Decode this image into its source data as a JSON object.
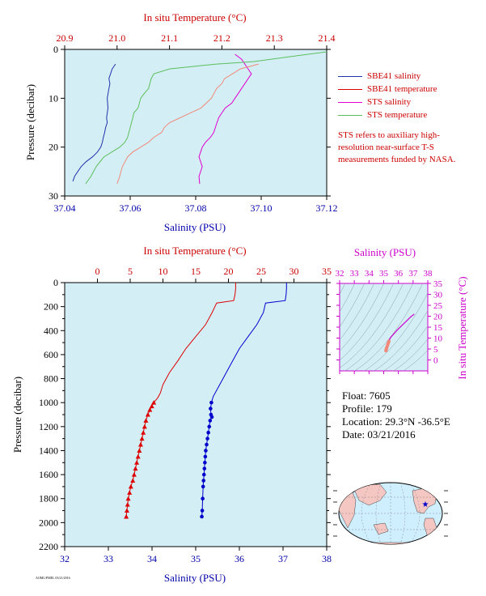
{
  "chart_data": [
    {
      "type": "line",
      "title": "",
      "top_axis": {
        "label": "In situ Temperature (°C)",
        "range": [
          20.9,
          21.4
        ],
        "ticks": [
          "20.9",
          "21.0",
          "21.1",
          "21.2",
          "21.3",
          "21.4"
        ],
        "color": "#cc0000"
      },
      "x_axis": {
        "label": "Salinity (PSU)",
        "range": [
          37.04,
          37.12
        ],
        "ticks": [
          "37.04",
          "37.06",
          "37.08",
          "37.10",
          "37.12"
        ],
        "color": "#0000aa"
      },
      "y_axis": {
        "label": "Pressure (decibar)",
        "range": [
          0,
          30
        ],
        "inverted": true,
        "ticks": [
          "0",
          "10",
          "20",
          "30"
        ]
      },
      "background": "#d4eef6",
      "series": [
        {
          "name": "SBE41 salinity",
          "axis": "salinity",
          "color": "#2233aa",
          "x": [
            37.0555,
            37.0545,
            37.054,
            37.0535,
            37.0538,
            37.0535,
            37.053,
            37.0532,
            37.0528,
            37.053,
            37.0525,
            37.0522,
            37.0518,
            37.0515,
            37.051,
            37.05,
            37.0485,
            37.0465,
            37.045,
            37.044,
            37.043,
            37.0425
          ],
          "y": [
            3,
            4,
            5,
            6,
            7,
            8,
            10,
            12,
            14,
            15,
            16,
            17,
            18,
            19,
            20,
            21,
            22,
            23,
            24,
            25,
            26,
            27
          ]
        },
        {
          "name": "SBE41 temperature",
          "axis": "temperature",
          "color": "#dd0000",
          "x": [],
          "y": []
        },
        {
          "name": "STS salinity",
          "axis": "salinity",
          "color": "#e000d0",
          "x": [
            37.092,
            37.094,
            37.095,
            37.096,
            37.097,
            37.096,
            37.095,
            37.094,
            37.093,
            37.092,
            37.091,
            37.089,
            37.088,
            37.087,
            37.0865,
            37.086,
            37.0855,
            37.0845,
            37.083,
            37.082,
            37.0815,
            37.081,
            37.082,
            37.081,
            37.0812
          ],
          "y": [
            1,
            2,
            3,
            4,
            5,
            6,
            7,
            8,
            9,
            10,
            11,
            12,
            13,
            14,
            15,
            16,
            17,
            18,
            19,
            20,
            21,
            22,
            24,
            26,
            27.5
          ]
        },
        {
          "name": "STS temperature",
          "axis": "temperature",
          "color": "#5bbf5b",
          "x": [
            21.4,
            21.33,
            21.26,
            21.19,
            21.1,
            21.07,
            21.065,
            21.06,
            21.052,
            21.045,
            21.04,
            21.032,
            21.03,
            21.025,
            21.02,
            21.015,
            21.005,
            20.99,
            20.975,
            20.96,
            20.95,
            20.94
          ],
          "y": [
            0.5,
            1.5,
            2.5,
            3,
            4,
            5,
            6,
            8,
            9,
            10,
            12,
            13,
            14,
            16,
            18,
            19,
            20,
            21,
            22,
            24,
            26,
            27.5
          ]
        },
        {
          "name": "",
          "axis": "temperature",
          "color": "#f08a7a",
          "x": [
            21.27,
            21.235,
            21.22,
            21.205,
            21.2,
            21.19,
            21.18,
            21.17,
            21.16,
            21.14,
            21.12,
            21.1,
            21.09,
            21.085,
            21.07,
            21.06,
            21.045,
            21.03,
            21.02,
            21.01,
            21.005,
            21.0
          ],
          "y": [
            3,
            4,
            5,
            6,
            7,
            8,
            10,
            11,
            12,
            13,
            14,
            15,
            16,
            17,
            18,
            19,
            20,
            21,
            22,
            24,
            26,
            27.5
          ]
        }
      ],
      "legend": {
        "position": "right",
        "items": [
          {
            "label": "SBE41 salinity",
            "color": "#2233aa"
          },
          {
            "label": "SBE41 temperature",
            "color": "#dd0000"
          },
          {
            "label": "STS salinity",
            "color": "#e000d0"
          },
          {
            "label": "STS temperature",
            "color": "#5bbf5b"
          }
        ],
        "note": "STS refers to auxiliary high-resolution near-surface T-S measurements funded by NASA."
      }
    },
    {
      "type": "line",
      "title": "",
      "top_axis": {
        "label": "In situ Temperature (°C)",
        "range": [
          -5,
          35
        ],
        "ticks": [
          "0",
          "5",
          "10",
          "15",
          "20",
          "25",
          "30",
          "35"
        ],
        "color": "#cc0000"
      },
      "x_axis": {
        "label": "Salinity (PSU)",
        "range": [
          32,
          38
        ],
        "ticks": [
          "32",
          "33",
          "34",
          "35",
          "36",
          "37",
          "38"
        ],
        "color": "#0000aa"
      },
      "y_axis": {
        "label": "Pressure (decibar)",
        "range": [
          0,
          2200
        ],
        "inverted": true,
        "ticks": [
          "0",
          "200",
          "400",
          "600",
          "800",
          "1000",
          "1200",
          "1400",
          "1600",
          "1800",
          "2000",
          "2200"
        ]
      },
      "background": "#d4eef6",
      "series": [
        {
          "name": "Temperature",
          "axis": "temperature",
          "color": "#dd0000",
          "x": [
            21.1,
            21.1,
            21.0,
            20.8,
            18.2,
            17.5,
            16.5,
            15.0,
            13.5,
            12.3,
            11.0,
            10.0,
            9.6,
            9.2,
            8.6,
            8.3,
            8.0,
            7.7,
            7.4,
            7.2,
            7.0,
            6.8,
            6.6,
            6.4,
            6.2,
            6.0,
            5.8,
            5.6,
            5.4,
            5.1,
            4.9,
            4.7,
            4.6,
            4.5,
            4.4,
            4.3,
            4.3,
            4.2
          ],
          "y": [
            0,
            50,
            100,
            150,
            170,
            250,
            350,
            450,
            550,
            650,
            750,
            850,
            920,
            960,
            1000,
            1030,
            1060,
            1100,
            1150,
            1200,
            1250,
            1300,
            1350,
            1400,
            1450,
            1500,
            1550,
            1600,
            1650,
            1700,
            1750,
            1800,
            1850,
            1900,
            1950,
            1950,
            1950,
            1950
          ],
          "markers": "triangle",
          "marker_from_pressure": 1000
        },
        {
          "name": "Salinity",
          "axis": "salinity",
          "color": "#0000cc",
          "x": [
            37.08,
            37.08,
            37.07,
            37.05,
            36.6,
            36.55,
            36.4,
            36.2,
            36.0,
            35.85,
            35.7,
            35.55,
            35.4,
            35.36,
            35.34,
            35.35,
            35.37,
            35.33,
            35.31,
            35.29,
            35.27,
            35.25,
            35.23,
            35.22,
            35.21,
            35.2,
            35.19,
            35.18,
            35.17,
            35.16,
            35.15,
            35.14
          ],
          "y": [
            0,
            50,
            100,
            150,
            170,
            250,
            350,
            450,
            550,
            650,
            750,
            850,
            950,
            1000,
            1050,
            1100,
            1120,
            1150,
            1200,
            1250,
            1300,
            1350,
            1400,
            1450,
            1500,
            1550,
            1600,
            1650,
            1700,
            1800,
            1900,
            1950
          ],
          "markers": "circle",
          "marker_from_pressure": 1000
        }
      ]
    },
    {
      "type": "scatter",
      "title": "",
      "x_axis": {
        "label": "Salinity (PSU)",
        "range": [
          32,
          38
        ],
        "ticks": [
          "32",
          "33",
          "34",
          "35",
          "36",
          "37",
          "38"
        ],
        "color": "#cc00cc"
      },
      "y_axis": {
        "label": "In situ Temperature (°C)",
        "range": [
          -5,
          35
        ],
        "ticks": [
          "0",
          "5",
          "10",
          "15",
          "20",
          "25",
          "30",
          "35"
        ],
        "color": "#cc00cc"
      },
      "background": "#d4eef6",
      "series": [
        {
          "name": "T-S",
          "color": "#cc00cc",
          "x": [
            37.08,
            36.8,
            36.5,
            36.2,
            35.9,
            35.7,
            35.5,
            35.4,
            35.35,
            35.3,
            35.25,
            35.2,
            35.18,
            35.15
          ],
          "y": [
            21.0,
            19.5,
            17.5,
            15.5,
            13.5,
            12.0,
            10.5,
            9.5,
            8.5,
            7.5,
            6.5,
            5.5,
            5.0,
            4.3
          ]
        }
      ]
    }
  ],
  "float": {
    "line1": "Float:  7605",
    "line2": "Profile:  179",
    "line3": "Location:  29.3°N  -36.5°E",
    "line4": "Date:  03/21/2016"
  },
  "map": {
    "marker": "star",
    "marker_color": "#0000cc",
    "land_color": "#f4c7c3",
    "ocean_color": "#cfefff",
    "lat": 29.3,
    "lon": -36.5
  },
  "stamp": "AOML/PMEL 03/21/2016"
}
